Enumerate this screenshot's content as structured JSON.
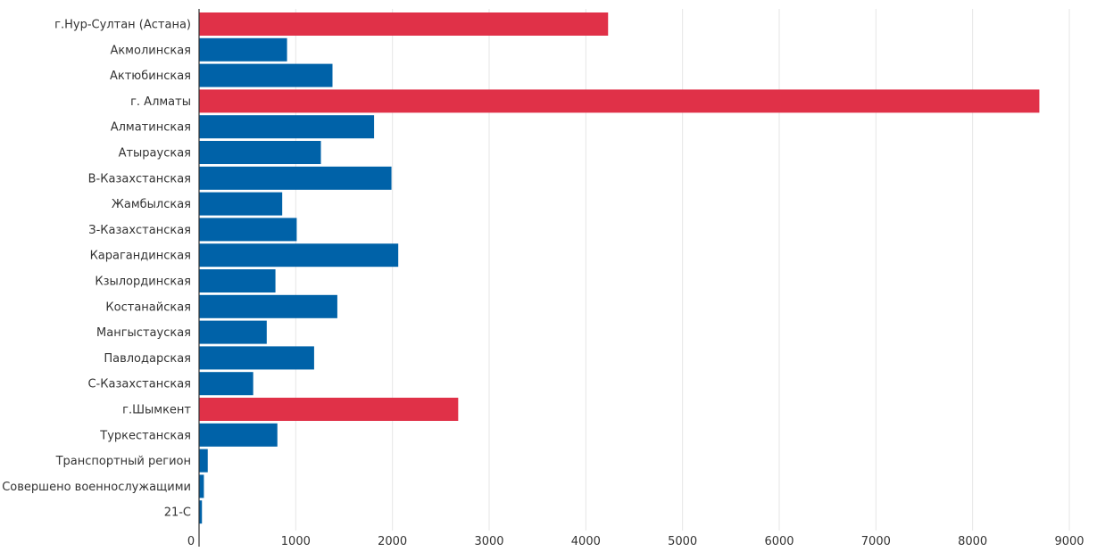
{
  "colors": {
    "highlight": "#e03148",
    "default": "#0062a8",
    "grid": "#e6e6e6",
    "text": "#333333"
  },
  "chart_data": {
    "type": "bar",
    "orientation": "horizontal",
    "title": "",
    "xlabel": "",
    "ylabel": "",
    "xlim": [
      0,
      9000
    ],
    "x_ticks": [
      0,
      1000,
      2000,
      3000,
      4000,
      5000,
      6000,
      7000,
      8000,
      9000
    ],
    "grid": true,
    "categories": [
      "г.Нур-Султан (Астана)",
      "Акмолинская",
      "Актюбинская",
      "г. Алматы",
      "Алматинская",
      "Атырауская",
      "В-Казахстанская",
      "Жамбылская",
      "З-Казахстанская",
      "Карагандинская",
      "Кзылординская",
      "Костанайская",
      "Мангыстауская",
      "Павлодарская",
      "С-Казахстанская",
      "г.Шымкент",
      "Туркестанская",
      "Транспортный регион",
      "Совершено военнослужащими",
      "21-С"
    ],
    "values": [
      4230,
      910,
      1380,
      8690,
      1810,
      1260,
      1990,
      860,
      1010,
      2060,
      790,
      1430,
      700,
      1190,
      560,
      2680,
      810,
      90,
      50,
      30
    ],
    "highlighted": [
      0,
      3,
      15
    ]
  }
}
